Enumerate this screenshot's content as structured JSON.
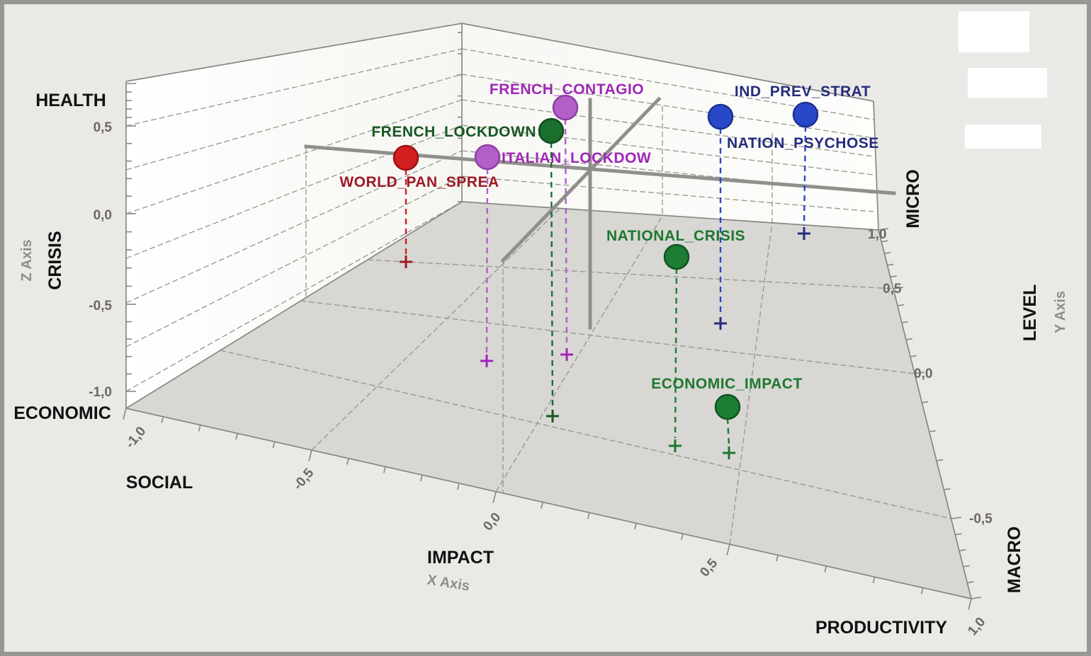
{
  "chart_data": {
    "type": "scatter",
    "projection": "3d",
    "grid": true,
    "values_estimated": true,
    "axes": {
      "x": {
        "axis_label": "X Axis",
        "name": "IMPACT",
        "neg_end_label": "SOCIAL",
        "pos_end_label": "PRODUCTIVITY",
        "range": [
          -1,
          1
        ],
        "ticks": [
          "-1,0",
          "-0,5",
          "0,0",
          "0,5",
          "1,0"
        ]
      },
      "y": {
        "axis_label": "Y Axis",
        "name": "LEVEL",
        "neg_end_label": "MACRO",
        "pos_end_label": "MICRO",
        "range": [
          -1,
          1
        ],
        "ticks": [
          "1,0",
          "0,5",
          "0,0",
          "-0,5"
        ]
      },
      "z": {
        "axis_label": "Z Axis",
        "name": "CRISIS",
        "neg_end_label": "ECONOMIC",
        "pos_end_label": "HEALTH",
        "range": [
          -1,
          0.75
        ],
        "ticks": [
          "0,5",
          "0,0",
          "-0,5",
          "-1,0"
        ]
      }
    },
    "points": [
      {
        "label": "WORLD_PAN_SPREA",
        "x": -0.75,
        "y": 0.5,
        "z": 0.3,
        "color_hex": "#d21f1f",
        "stroke_hex": "#991212",
        "label_hex": "#9d1a26"
      },
      {
        "label": "ITALIAN_LOCKDOW",
        "x": -0.25,
        "y": -0.2,
        "z": 0.25,
        "color_hex": "#b25fc7",
        "stroke_hex": "#8e3fa6",
        "label_hex": "#a026b8"
      },
      {
        "label": "FRENCH_CONTAGIO",
        "x": -0.1,
        "y": 0.1,
        "z": 0.45,
        "color_hex": "#b25fc7",
        "stroke_hex": "#8e3fa6",
        "label_hex": "#a026b8"
      },
      {
        "label": "FRENCH_LOCKDOWN",
        "x": 0.05,
        "y": -0.5,
        "z": 0.55,
        "color_hex": "#1a6e2e",
        "stroke_hex": "#114c1f",
        "label_hex": "#175722"
      },
      {
        "label": "NATION_PSYCHOSE",
        "x": 0.4,
        "y": 0.0,
        "z": 0.45,
        "color_hex": "#2948c9",
        "stroke_hex": "#1b3190",
        "label_hex": "#252c7c"
      },
      {
        "label": "IND_PREV_STRAT",
        "x": 0.65,
        "y": 0.85,
        "z": 0.3,
        "color_hex": "#2948c9",
        "stroke_hex": "#1b3190",
        "label_hex": "#252c7c"
      },
      {
        "label": "NATIONAL_CRISIS",
        "x": 0.35,
        "y": -0.5,
        "z": 0.0,
        "color_hex": "#1d7d33",
        "stroke_hex": "#135322",
        "label_hex": "#1f7730"
      },
      {
        "label": "ECONOMIC_IMPACT",
        "x": 0.5,
        "y": -0.45,
        "z": -0.75,
        "color_hex": "#1d7d33",
        "stroke_hex": "#135322",
        "label_hex": "#1f7730"
      }
    ]
  }
}
